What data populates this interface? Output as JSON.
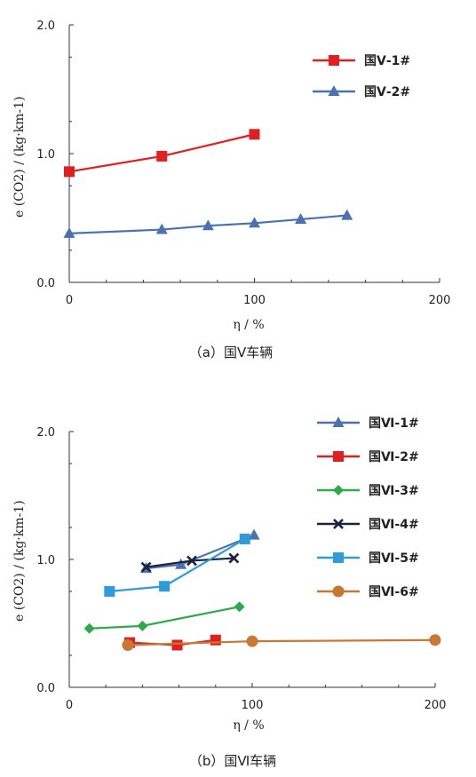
{
  "chart_data": [
    {
      "type": "line",
      "caption": "（a）国Ⅴ车辆",
      "xlabel": "η / %",
      "ylabel": "e (CO2) / (kg·km-1)",
      "xlim": [
        0,
        200
      ],
      "ylim": [
        0,
        2.0
      ],
      "x_ticks": [
        "0",
        "100",
        "200"
      ],
      "y_ticks": [
        "0.0",
        "1.0",
        "2.0"
      ],
      "grid": false,
      "legend": "top-right",
      "series": [
        {
          "name": "国Ⅴ-1#",
          "color": "#e02020",
          "marker": "square",
          "x": [
            0,
            50,
            100
          ],
          "y": [
            0.86,
            0.98,
            1.15
          ]
        },
        {
          "name": "国Ⅴ-2#",
          "color": "#4a72b0",
          "marker": "triangle",
          "x": [
            0,
            50,
            75,
            100,
            125,
            150
          ],
          "y": [
            0.38,
            0.41,
            0.44,
            0.46,
            0.49,
            0.52
          ]
        }
      ]
    },
    {
      "type": "line",
      "caption": "（b）国Ⅵ车辆",
      "xlabel": "η / %",
      "ylabel": "e (CO2) / (kg·km-1)",
      "xlim": [
        0,
        200
      ],
      "ylim": [
        0,
        2.0
      ],
      "x_ticks": [
        "0",
        "100",
        "200"
      ],
      "y_ticks": [
        "0.0",
        "1.0",
        "2.0"
      ],
      "grid": false,
      "legend": "top-right",
      "series": [
        {
          "name": "国Ⅵ-1#",
          "color": "#4a72b0",
          "marker": "triangle",
          "x": [
            42,
            61,
            101
          ],
          "y": [
            0.93,
            0.96,
            1.19
          ]
        },
        {
          "name": "国Ⅵ-2#",
          "color": "#e02020",
          "marker": "square",
          "x": [
            33,
            59,
            80
          ],
          "y": [
            0.35,
            0.33,
            0.37
          ]
        },
        {
          "name": "国Ⅵ-3#",
          "color": "#2eaa4a",
          "marker": "diamond",
          "x": [
            11,
            40,
            93
          ],
          "y": [
            0.46,
            0.48,
            0.63
          ]
        },
        {
          "name": "国Ⅵ-4#",
          "color": "#1a2340",
          "marker": "x",
          "x": [
            42,
            67,
            90
          ],
          "y": [
            0.94,
            0.99,
            1.01
          ]
        },
        {
          "name": "国Ⅵ-5#",
          "color": "#2e9cd8",
          "marker": "square",
          "x": [
            22,
            52,
            96
          ],
          "y": [
            0.75,
            0.79,
            1.16
          ]
        },
        {
          "name": "国Ⅵ-6#",
          "color": "#c87833",
          "marker": "circle",
          "x": [
            32,
            100,
            200
          ],
          "y": [
            0.33,
            0.36,
            0.37
          ]
        }
      ]
    }
  ]
}
